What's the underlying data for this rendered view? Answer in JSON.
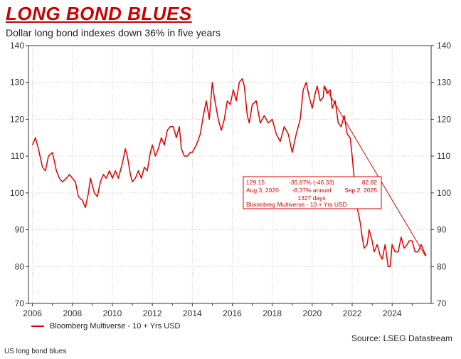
{
  "header": {
    "title": "LONG BOND BLUES",
    "subtitle": "Dollar long bond indexes down 36% in five years"
  },
  "footer": {
    "legend_label": "Bloomberg Multiverse - 10 + Yrs USD",
    "source": "Source: LSEG Datastream",
    "footnote": "US long bond blues"
  },
  "colors": {
    "series": "#e00000",
    "grid": "#c8c8c8",
    "axis": "#333333"
  },
  "annotation": {
    "start_value": "129.15",
    "start_date": "Aug 3, 2020",
    "change": "-35.87% (-46.33)",
    "annual": "-8.37% annual",
    "days": "1327 days",
    "end_value": "82.82",
    "end_date": "Sep 2, 2025",
    "series_label": "Bloomberg Multiverse - 10 + Yrs USD"
  },
  "chart_data": {
    "type": "line",
    "title": "LONG BOND BLUES",
    "subtitle": "Dollar long bond indexes down 36% in five years",
    "ylim": [
      70,
      140
    ],
    "xlim": [
      2005.8,
      2025.95
    ],
    "yticks": [
      70,
      80,
      90,
      100,
      110,
      120,
      130,
      140
    ],
    "xticks": [
      2006,
      2008,
      2010,
      2012,
      2014,
      2016,
      2018,
      2020,
      2022,
      2024
    ],
    "grid": true,
    "legend_position": "bottom-left",
    "series": [
      {
        "name": "Bloomberg Multiverse - 10 + Yrs USD",
        "x": [
          2006.0,
          2006.15,
          2006.3,
          2006.5,
          2006.65,
          2006.8,
          2007.0,
          2007.2,
          2007.35,
          2007.5,
          2007.7,
          2007.85,
          2008.0,
          2008.15,
          2008.3,
          2008.5,
          2008.65,
          2008.8,
          2008.9,
          2009.0,
          2009.1,
          2009.25,
          2009.4,
          2009.55,
          2009.7,
          2009.85,
          2010.0,
          2010.15,
          2010.3,
          2010.5,
          2010.65,
          2010.75,
          2010.9,
          2011.0,
          2011.15,
          2011.3,
          2011.45,
          2011.6,
          2011.75,
          2011.9,
          2012.0,
          2012.15,
          2012.3,
          2012.45,
          2012.6,
          2012.75,
          2012.9,
          2013.05,
          2013.2,
          2013.35,
          2013.45,
          2013.6,
          2013.75,
          2013.9,
          2014.0,
          2014.2,
          2014.4,
          2014.55,
          2014.7,
          2014.85,
          2015.0,
          2015.1,
          2015.3,
          2015.45,
          2015.6,
          2015.75,
          2015.9,
          2016.05,
          2016.2,
          2016.35,
          2016.5,
          2016.6,
          2016.75,
          2016.85,
          2017.0,
          2017.2,
          2017.4,
          2017.6,
          2017.8,
          2018.0,
          2018.2,
          2018.4,
          2018.6,
          2018.8,
          2019.0,
          2019.2,
          2019.4,
          2019.55,
          2019.7,
          2019.85,
          2020.0,
          2020.15,
          2020.25,
          2020.4,
          2020.55,
          2020.6,
          2020.75,
          2020.9,
          2021.0,
          2021.15,
          2021.3,
          2021.45,
          2021.6,
          2021.75,
          2021.9,
          2022.0,
          2022.1,
          2022.25,
          2022.4,
          2022.5,
          2022.6,
          2022.75,
          2022.85,
          2023.0,
          2023.1,
          2023.25,
          2023.4,
          2023.5,
          2023.65,
          2023.8,
          2023.9,
          2024.0,
          2024.15,
          2024.3,
          2024.45,
          2024.6,
          2024.75,
          2024.85,
          2025.0,
          2025.15,
          2025.3,
          2025.45,
          2025.6,
          2025.7
        ],
        "values": [
          113,
          115,
          112,
          107,
          106,
          110,
          111,
          106,
          104,
          103,
          104,
          105,
          104,
          103,
          99,
          98,
          96,
          100,
          104,
          102,
          100,
          99,
          103,
          105,
          104,
          106,
          104,
          106,
          104,
          108,
          112,
          110,
          105,
          103,
          104,
          106,
          104,
          107,
          106,
          111,
          113,
          110,
          112,
          115,
          113,
          117,
          118,
          118,
          115,
          118,
          112,
          110,
          110,
          111,
          111,
          113,
          116,
          121,
          125,
          120,
          130,
          126,
          120,
          117,
          120,
          125,
          124,
          128,
          125,
          130,
          131,
          129,
          121,
          119,
          124,
          125,
          119,
          121,
          119,
          120,
          116,
          114,
          118,
          116,
          111,
          116,
          120,
          128,
          130,
          126,
          123,
          127,
          129,
          125,
          126,
          129,
          127,
          128,
          123,
          125,
          119,
          118,
          121,
          116,
          115,
          110,
          104,
          96,
          92,
          88,
          85,
          86,
          90,
          87,
          84,
          86,
          83,
          82,
          86,
          80,
          80,
          86,
          84,
          84,
          88,
          85,
          86,
          87,
          87,
          84,
          84,
          86,
          84,
          83
        ]
      }
    ]
  }
}
